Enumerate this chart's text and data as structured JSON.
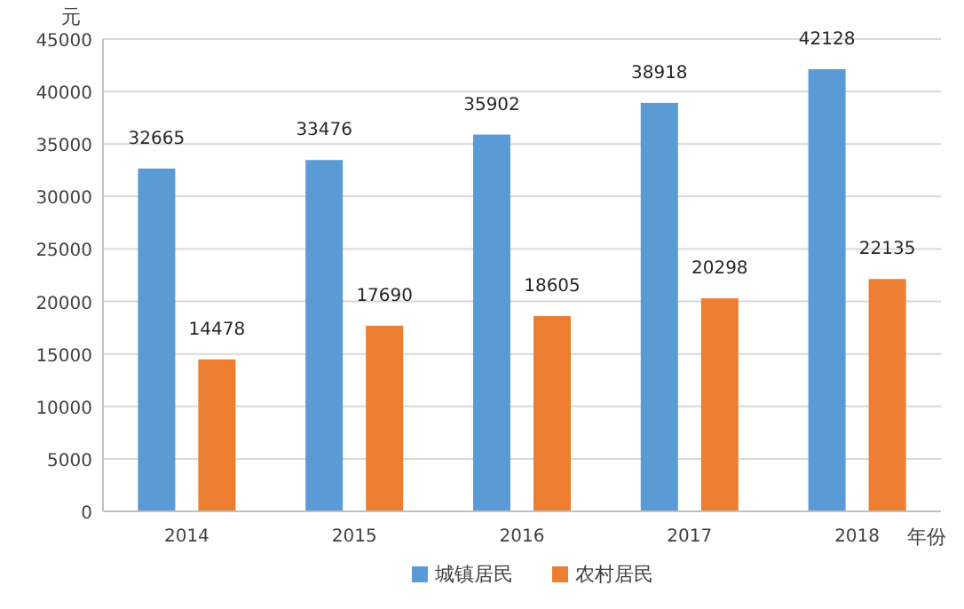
{
  "chart_data": {
    "type": "bar",
    "ylabel": "元",
    "xlabel": "年份",
    "categories": [
      "2014",
      "2015",
      "2016",
      "2017",
      "2018"
    ],
    "series": [
      {
        "name": "城镇居民",
        "color": "#5b9bd5",
        "values": [
          32665,
          33476,
          35902,
          38918,
          42128
        ]
      },
      {
        "name": "农村居民",
        "color": "#ed7d31",
        "values": [
          14478,
          17690,
          18605,
          20298,
          22135
        ]
      }
    ],
    "ylim": [
      0,
      45000
    ],
    "yticks": [
      0,
      5000,
      10000,
      15000,
      20000,
      25000,
      30000,
      35000,
      40000,
      45000
    ],
    "grid": "y",
    "legend": "bottom",
    "data_labels": true
  }
}
